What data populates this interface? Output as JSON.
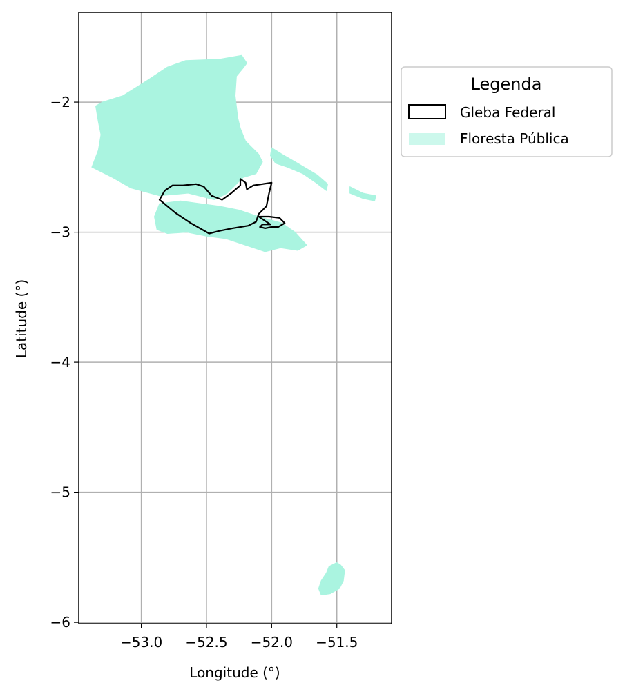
{
  "chart_data": {
    "type": "map",
    "xlabel": "Longitude (°)",
    "ylabel": "Latitude (°)",
    "xlim": [
      -53.48,
      -51.08
    ],
    "ylim": [
      -6.01,
      -1.31
    ],
    "grid": true,
    "x_ticks": [
      {
        "value": -53.0,
        "label": "−53.0"
      },
      {
        "value": -52.5,
        "label": "−52.5"
      },
      {
        "value": -52.0,
        "label": "−52.0"
      },
      {
        "value": -51.5,
        "label": "−51.5"
      }
    ],
    "y_ticks": [
      {
        "value": -2,
        "label": "−2"
      },
      {
        "value": -3,
        "label": "−3"
      },
      {
        "value": -4,
        "label": "−4"
      },
      {
        "value": -5,
        "label": "−5"
      },
      {
        "value": -6,
        "label": "−6"
      }
    ],
    "legend": {
      "title": "Legenda",
      "placement": "outside-right-top",
      "entries": [
        {
          "label": "Gleba Federal",
          "style": "outline",
          "color": "#000000"
        },
        {
          "label": "Floresta Pública",
          "style": "fill",
          "color": "#aaf4e0"
        }
      ]
    },
    "layers": [
      {
        "name": "Floresta Pública",
        "fill": "#aaf4e0",
        "polygons": [
          [
            [
              -53.35,
              -2.03
            ],
            [
              -53.3,
              -2.0
            ],
            [
              -53.14,
              -1.95
            ],
            [
              -52.95,
              -1.83
            ],
            [
              -52.8,
              -1.73
            ],
            [
              -52.66,
              -1.68
            ],
            [
              -52.4,
              -1.67
            ],
            [
              -52.23,
              -1.64
            ],
            [
              -52.19,
              -1.7
            ],
            [
              -52.22,
              -1.74
            ],
            [
              -52.27,
              -1.8
            ],
            [
              -52.28,
              -1.95
            ],
            [
              -52.26,
              -2.12
            ],
            [
              -52.24,
              -2.2
            ],
            [
              -52.2,
              -2.3
            ],
            [
              -52.1,
              -2.4
            ],
            [
              -52.07,
              -2.46
            ],
            [
              -52.12,
              -2.55
            ],
            [
              -52.22,
              -2.58
            ],
            [
              -52.34,
              -2.7
            ],
            [
              -52.44,
              -2.75
            ],
            [
              -52.64,
              -2.7
            ],
            [
              -52.86,
              -2.72
            ],
            [
              -53.08,
              -2.66
            ],
            [
              -53.22,
              -2.58
            ],
            [
              -53.38,
              -2.5
            ],
            [
              -53.33,
              -2.37
            ],
            [
              -53.31,
              -2.25
            ],
            [
              -53.33,
              -2.15
            ]
          ],
          [
            [
              -52.86,
              -2.78
            ],
            [
              -52.7,
              -2.76
            ],
            [
              -52.55,
              -2.78
            ],
            [
              -52.4,
              -2.8
            ],
            [
              -52.25,
              -2.83
            ],
            [
              -52.1,
              -2.88
            ],
            [
              -51.92,
              -2.93
            ],
            [
              -51.82,
              -3.0
            ],
            [
              -51.73,
              -3.1
            ],
            [
              -51.8,
              -3.14
            ],
            [
              -51.93,
              -3.12
            ],
            [
              -52.05,
              -3.15
            ],
            [
              -52.2,
              -3.1
            ],
            [
              -52.35,
              -3.05
            ],
            [
              -52.5,
              -3.03
            ],
            [
              -52.65,
              -3.0
            ],
            [
              -52.8,
              -3.01
            ],
            [
              -52.88,
              -2.98
            ],
            [
              -52.9,
              -2.88
            ]
          ],
          [
            [
              -52.0,
              -2.35
            ],
            [
              -51.92,
              -2.4
            ],
            [
              -51.8,
              -2.47
            ],
            [
              -51.65,
              -2.56
            ],
            [
              -51.57,
              -2.63
            ],
            [
              -51.58,
              -2.68
            ],
            [
              -51.66,
              -2.62
            ],
            [
              -51.76,
              -2.55
            ],
            [
              -51.88,
              -2.5
            ],
            [
              -51.97,
              -2.47
            ],
            [
              -52.01,
              -2.41
            ]
          ],
          [
            [
              -51.4,
              -2.65
            ],
            [
              -51.3,
              -2.7
            ],
            [
              -51.2,
              -2.72
            ],
            [
              -51.21,
              -2.76
            ],
            [
              -51.3,
              -2.74
            ],
            [
              -51.4,
              -2.7
            ]
          ],
          [
            [
              -51.5,
              -5.54
            ],
            [
              -51.56,
              -5.57
            ],
            [
              -51.58,
              -5.62
            ],
            [
              -51.62,
              -5.68
            ],
            [
              -51.64,
              -5.74
            ],
            [
              -51.62,
              -5.79
            ],
            [
              -51.55,
              -5.78
            ],
            [
              -51.48,
              -5.74
            ],
            [
              -51.45,
              -5.68
            ],
            [
              -51.44,
              -5.6
            ],
            [
              -51.47,
              -5.56
            ]
          ]
        ]
      },
      {
        "name": "Gleba Federal",
        "stroke": "#000000",
        "fill": "none",
        "polygons": [
          [
            [
              -52.86,
              -2.75
            ],
            [
              -52.82,
              -2.68
            ],
            [
              -52.76,
              -2.64
            ],
            [
              -52.68,
              -2.64
            ],
            [
              -52.58,
              -2.63
            ],
            [
              -52.52,
              -2.65
            ],
            [
              -52.46,
              -2.72
            ],
            [
              -52.38,
              -2.75
            ],
            [
              -52.31,
              -2.7
            ],
            [
              -52.24,
              -2.64
            ],
            [
              -52.24,
              -2.59
            ],
            [
              -52.2,
              -2.62
            ],
            [
              -52.19,
              -2.67
            ],
            [
              -52.14,
              -2.64
            ],
            [
              -52.07,
              -2.63
            ],
            [
              -52.0,
              -2.62
            ],
            [
              -52.02,
              -2.7
            ],
            [
              -52.04,
              -2.8
            ],
            [
              -52.1,
              -2.86
            ],
            [
              -52.12,
              -2.92
            ],
            [
              -52.18,
              -2.95
            ],
            [
              -52.3,
              -2.97
            ],
            [
              -52.4,
              -2.99
            ],
            [
              -52.48,
              -3.01
            ],
            [
              -52.62,
              -2.93
            ],
            [
              -52.74,
              -2.85
            ]
          ],
          [
            [
              -52.1,
              -2.88
            ],
            [
              -52.02,
              -2.88
            ],
            [
              -51.94,
              -2.89
            ],
            [
              -51.9,
              -2.93
            ],
            [
              -51.95,
              -2.96
            ],
            [
              -52.0,
              -2.96
            ],
            [
              -52.05,
              -2.97
            ],
            [
              -52.09,
              -2.96
            ],
            [
              -52.07,
              -2.94
            ],
            [
              -52.01,
              -2.94
            ]
          ]
        ]
      }
    ]
  }
}
